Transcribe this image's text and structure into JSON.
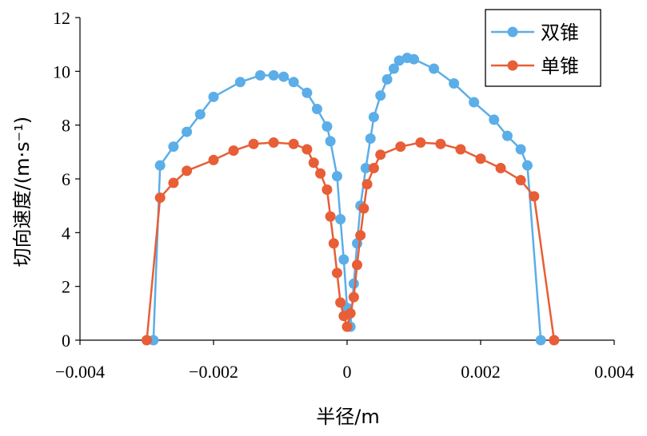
{
  "chart_data": {
    "type": "line",
    "xlabel": "半径/m",
    "ylabel": "切向速度/(m·s⁻¹)",
    "xlim": [
      -0.004,
      0.004
    ],
    "ylim": [
      0,
      12
    ],
    "x_ticks": [
      "−0.004",
      "−0.002",
      "0",
      "0.002",
      "0.004"
    ],
    "y_ticks": [
      "0",
      "2",
      "4",
      "6",
      "8",
      "10",
      "12"
    ],
    "grid": false,
    "legend_position": "top-right",
    "series": [
      {
        "name": "双锥",
        "color": "#5BAEE8",
        "points": [
          [
            -0.0029,
            0
          ],
          [
            -0.0028,
            6.5
          ],
          [
            -0.0026,
            7.2
          ],
          [
            -0.0024,
            7.75
          ],
          [
            -0.0022,
            8.4
          ],
          [
            -0.002,
            9.05
          ],
          [
            -0.0016,
            9.6
          ],
          [
            -0.0013,
            9.85
          ],
          [
            -0.0011,
            9.85
          ],
          [
            -0.00095,
            9.8
          ],
          [
            -0.0008,
            9.6
          ],
          [
            -0.0006,
            9.2
          ],
          [
            -0.00045,
            8.6
          ],
          [
            -0.0003,
            7.95
          ],
          [
            -0.00025,
            7.4
          ],
          [
            -0.00015,
            6.1
          ],
          [
            -0.0001,
            4.5
          ],
          [
            -5e-05,
            3.0
          ],
          [
            0.0,
            1.2
          ],
          [
            5e-05,
            0.5
          ],
          [
            0.0001,
            2.1
          ],
          [
            0.00015,
            3.6
          ],
          [
            0.0002,
            5.0
          ],
          [
            0.00028,
            6.4
          ],
          [
            0.00035,
            7.5
          ],
          [
            0.0004,
            8.3
          ],
          [
            0.0005,
            9.1
          ],
          [
            0.0006,
            9.7
          ],
          [
            0.0007,
            10.1
          ],
          [
            0.00078,
            10.4
          ],
          [
            0.0009,
            10.5
          ],
          [
            0.001,
            10.45
          ],
          [
            0.0013,
            10.1
          ],
          [
            0.0016,
            9.55
          ],
          [
            0.0019,
            8.85
          ],
          [
            0.0022,
            8.2
          ],
          [
            0.0024,
            7.6
          ],
          [
            0.0026,
            7.1
          ],
          [
            0.0027,
            6.5
          ],
          [
            0.0029,
            0
          ]
        ]
      },
      {
        "name": "单锥",
        "color": "#E85E36",
        "points": [
          [
            -0.003,
            0
          ],
          [
            -0.0028,
            5.3
          ],
          [
            -0.0026,
            5.85
          ],
          [
            -0.0024,
            6.3
          ],
          [
            -0.002,
            6.7
          ],
          [
            -0.0017,
            7.05
          ],
          [
            -0.0014,
            7.3
          ],
          [
            -0.0011,
            7.35
          ],
          [
            -0.0008,
            7.3
          ],
          [
            -0.0006,
            7.1
          ],
          [
            -0.0005,
            6.6
          ],
          [
            -0.0004,
            6.2
          ],
          [
            -0.0003,
            5.6
          ],
          [
            -0.00025,
            4.6
          ],
          [
            -0.0002,
            3.6
          ],
          [
            -0.00015,
            2.5
          ],
          [
            -0.0001,
            1.4
          ],
          [
            -5e-05,
            0.9
          ],
          [
            0.0,
            0.5
          ],
          [
            5e-05,
            1.0
          ],
          [
            0.0001,
            1.6
          ],
          [
            0.00015,
            2.8
          ],
          [
            0.0002,
            3.9
          ],
          [
            0.00025,
            4.9
          ],
          [
            0.0003,
            5.8
          ],
          [
            0.0004,
            6.4
          ],
          [
            0.0005,
            6.9
          ],
          [
            0.0008,
            7.2
          ],
          [
            0.0011,
            7.35
          ],
          [
            0.0014,
            7.3
          ],
          [
            0.0017,
            7.1
          ],
          [
            0.002,
            6.75
          ],
          [
            0.0023,
            6.4
          ],
          [
            0.0026,
            5.95
          ],
          [
            0.0028,
            5.35
          ],
          [
            0.0031,
            0
          ]
        ]
      }
    ]
  }
}
